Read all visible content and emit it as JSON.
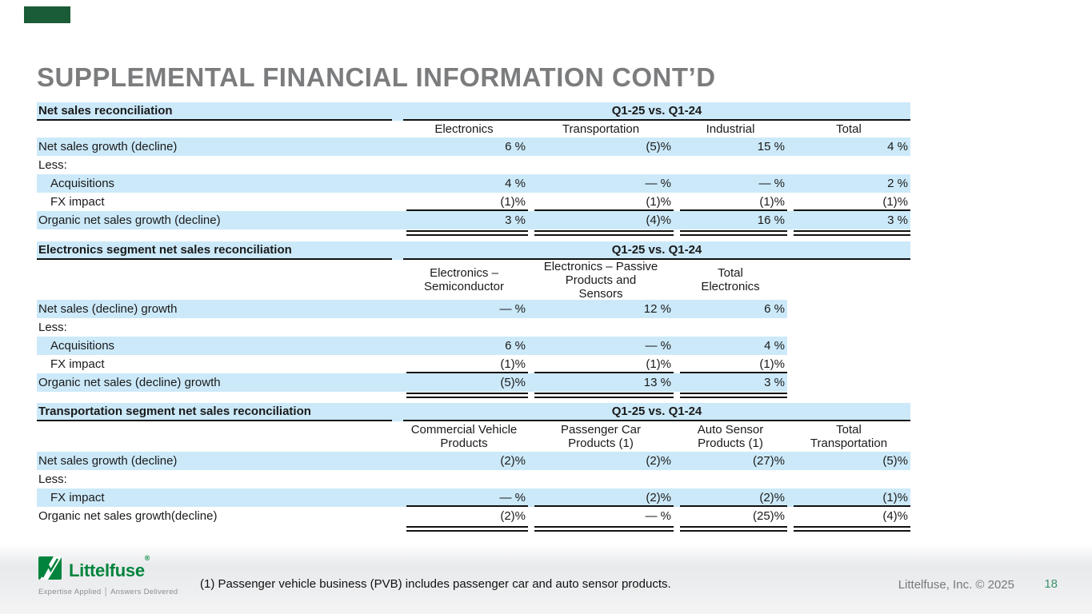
{
  "title": "SUPPLEMENTAL FINANCIAL INFORMATION CONT’D",
  "colors": {
    "row_highlight_blue": "#cce9f9",
    "accent_corner_green": "#1b5c38",
    "title_gray": "#7b7c7e",
    "logo_green": "#00843d",
    "page_number_green": "#3c9471",
    "rule_black": "#111111"
  },
  "tables": [
    {
      "name": "Net sales reconciliation",
      "period_header": "Q1-25 vs. Q1-24",
      "shade_full_width": true,
      "columns": [
        "Electronics",
        "Transportation",
        "Industrial",
        "Total"
      ],
      "rows": [
        {
          "label": "Net sales growth (decline)",
          "indent": false,
          "shaded": true,
          "rule_below": null,
          "values": [
            "6 %",
            "(5)%",
            "15 %",
            "4 %"
          ]
        },
        {
          "label": "Less:",
          "indent": false,
          "shaded": false,
          "rule_below": null,
          "values": []
        },
        {
          "label": "Acquisitions",
          "indent": true,
          "shaded": true,
          "rule_below": null,
          "values": [
            "4 %",
            "— %",
            "— %",
            "2 %"
          ]
        },
        {
          "label": "FX impact",
          "indent": true,
          "shaded": false,
          "rule_below": "single",
          "values": [
            "(1)%",
            "(1)%",
            "(1)%",
            "(1)%"
          ]
        },
        {
          "label": "Organic net sales growth (decline)",
          "indent": false,
          "shaded": true,
          "rule_below": "double",
          "values": [
            "3 %",
            "(4)%",
            "16 %",
            "3 %"
          ]
        }
      ]
    },
    {
      "name": "Electronics segment net sales reconciliation",
      "period_header": "Q1-25 vs. Q1-24",
      "shade_full_width": false,
      "columns": [
        "Electronics –\nSemiconductor",
        "Electronics – Passive\nProducts and\nSensors",
        "Total\nElectronics"
      ],
      "rows": [
        {
          "label": "Net sales (decline) growth",
          "indent": false,
          "shaded": true,
          "rule_below": null,
          "values": [
            "— %",
            "12 %",
            "6 %"
          ]
        },
        {
          "label": "Less:",
          "indent": false,
          "shaded": false,
          "rule_below": null,
          "values": []
        },
        {
          "label": "Acquisitions",
          "indent": true,
          "shaded": true,
          "rule_below": null,
          "values": [
            "6 %",
            "— %",
            "4 %"
          ]
        },
        {
          "label": "FX impact",
          "indent": true,
          "shaded": false,
          "rule_below": "single",
          "values": [
            "(1)%",
            "(1)%",
            "(1)%"
          ]
        },
        {
          "label": "Organic net sales (decline) growth",
          "indent": false,
          "shaded": true,
          "rule_below": "double",
          "values": [
            "(5)%",
            "13 %",
            "3 %"
          ]
        }
      ]
    },
    {
      "name": "Transportation segment net sales reconciliation",
      "period_header": "Q1-25 vs. Q1-24",
      "shade_full_width": true,
      "columns": [
        "Commercial Vehicle\nProducts",
        "Passenger Car\nProducts (1)",
        "Auto Sensor\nProducts (1)",
        "Total\nTransportation"
      ],
      "rows": [
        {
          "label": "Net sales  growth (decline)",
          "indent": false,
          "shaded": true,
          "rule_below": null,
          "values": [
            "(2)%",
            "(2)%",
            "(27)%",
            "(5)%"
          ]
        },
        {
          "label": "Less:",
          "indent": false,
          "shaded": false,
          "rule_below": null,
          "values": []
        },
        {
          "label": "FX impact",
          "indent": true,
          "shaded": true,
          "rule_below": "single",
          "values": [
            "— %",
            "(2)%",
            "(2)%",
            "(1)%"
          ]
        },
        {
          "label": "Organic net sales growth(decline)",
          "indent": false,
          "shaded": false,
          "rule_below": "double",
          "values": [
            "(2)%",
            "— %",
            "(25)%",
            "(4)%"
          ]
        }
      ]
    }
  ],
  "footer": {
    "footnote": "(1) Passenger vehicle business (PVB) includes passenger car and auto sensor products.",
    "copyright": "Littelfuse, Inc. © 2025",
    "page_number": "18",
    "logo": {
      "wordmark": "Littelfuse",
      "registered_mark": "®",
      "tagline": "Expertise Applied │ Answers Delivered"
    }
  }
}
